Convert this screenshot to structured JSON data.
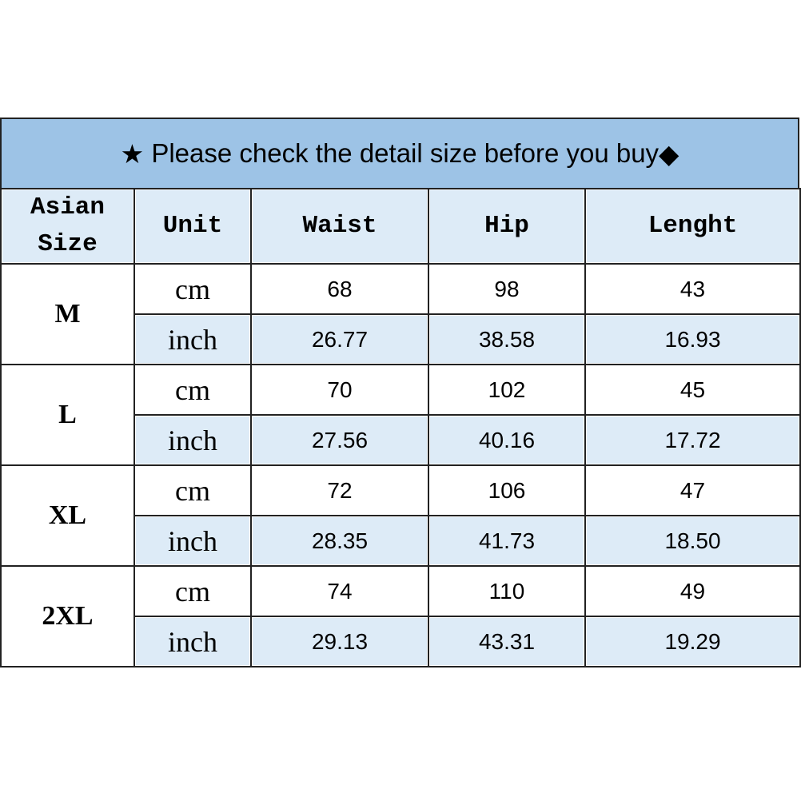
{
  "title": {
    "star": "★",
    "text": "Please check the detail size before you buy",
    "diamond": "◆"
  },
  "headers": [
    "Asian Size",
    "Unit",
    "Waist",
    "Hip",
    "Lenght"
  ],
  "header_lines": {
    "size_1": "Asian",
    "size_2": "Size"
  },
  "colors": {
    "title_bg": "#9DC3E6",
    "header_bg": "#DDEBF7",
    "inch_row_bg": "#DDEBF7"
  },
  "rows": [
    {
      "size": "M",
      "cm": {
        "unit": "cm",
        "waist": "68",
        "hip": "98",
        "length": "43"
      },
      "inch": {
        "unit": "inch",
        "waist": "26.77",
        "hip": "38.58",
        "length": "16.93"
      }
    },
    {
      "size": "L",
      "cm": {
        "unit": "cm",
        "waist": "70",
        "hip": "102",
        "length": "45"
      },
      "inch": {
        "unit": "inch",
        "waist": "27.56",
        "hip": "40.16",
        "length": "17.72"
      }
    },
    {
      "size": "XL",
      "cm": {
        "unit": "cm",
        "waist": "72",
        "hip": "106",
        "length": "47"
      },
      "inch": {
        "unit": "inch",
        "waist": "28.35",
        "hip": "41.73",
        "length": "18.50"
      }
    },
    {
      "size": "2XL",
      "cm": {
        "unit": "cm",
        "waist": "74",
        "hip": "110",
        "length": "49"
      },
      "inch": {
        "unit": "inch",
        "waist": "29.13",
        "hip": "43.31",
        "length": "19.29"
      }
    }
  ]
}
